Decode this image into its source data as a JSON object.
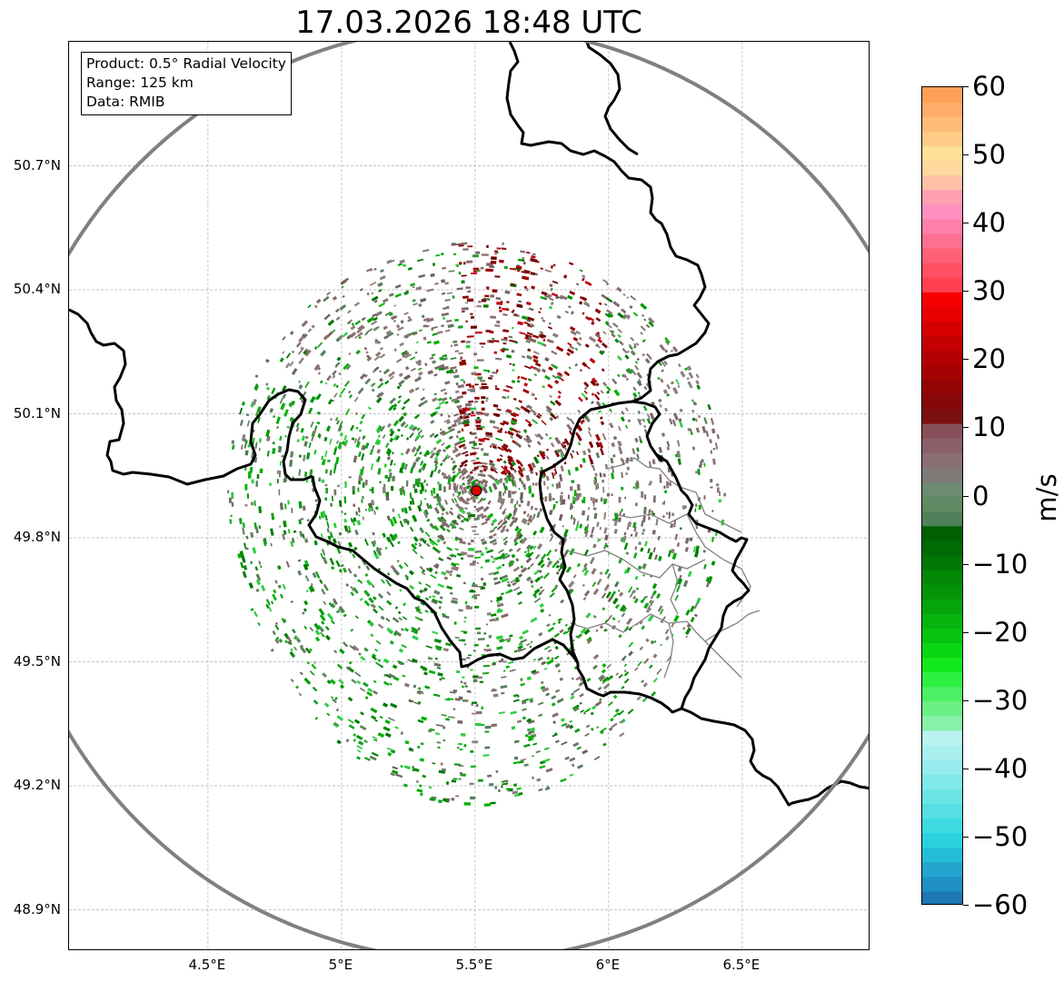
{
  "title": "17.03.2026 18:48 UTC",
  "info": {
    "product": "Product: 0.5° Radial Velocity",
    "range": "Range: 125 km",
    "data": "Data: RMIB"
  },
  "map": {
    "lat_ticks": [
      {
        "value": 50.7,
        "label": "50.7°N"
      },
      {
        "value": 50.4,
        "label": "50.4°N"
      },
      {
        "value": 50.1,
        "label": "50.1°N"
      },
      {
        "value": 49.8,
        "label": "49.8°N"
      },
      {
        "value": 49.5,
        "label": "49.5°N"
      },
      {
        "value": 49.2,
        "label": "49.2°N"
      },
      {
        "value": 48.9,
        "label": "48.9°N"
      }
    ],
    "lon_ticks": [
      {
        "value": 4.5,
        "label": "4.5°E"
      },
      {
        "value": 5.0,
        "label": "5°E"
      },
      {
        "value": 5.5,
        "label": "5.5°E"
      },
      {
        "value": 6.0,
        "label": "6°E"
      },
      {
        "value": 6.5,
        "label": "6.5°E"
      }
    ],
    "lon_range": [
      3.98,
      6.98
    ],
    "lat_range": [
      48.8,
      51.0
    ],
    "radar_site": {
      "lon": 5.505,
      "lat": 49.914
    },
    "range_km": 125,
    "gridlines": true
  },
  "colorbar": {
    "unit": "m/s",
    "vmin": -60,
    "vmax": 60,
    "ticks": [
      {
        "value": 60,
        "label": "60"
      },
      {
        "value": 50,
        "label": "50"
      },
      {
        "value": 40,
        "label": "40"
      },
      {
        "value": 30,
        "label": "30"
      },
      {
        "value": 20,
        "label": "20"
      },
      {
        "value": 10,
        "label": "10"
      },
      {
        "value": 0,
        "label": "0"
      },
      {
        "value": -10,
        "label": "−10"
      },
      {
        "value": -20,
        "label": "−20"
      },
      {
        "value": -30,
        "label": "−30"
      },
      {
        "value": -40,
        "label": "−40"
      },
      {
        "value": -50,
        "label": "−50"
      },
      {
        "value": -60,
        "label": "−60"
      }
    ],
    "colors_bottom_to_top": [
      "#1f77b4",
      "#1f8fc4",
      "#22a6cf",
      "#25bcd8",
      "#2ad2de",
      "#3fd9e0",
      "#55dfe3",
      "#6be4e6",
      "#81e8e9",
      "#96ecec",
      "#aaf0ee",
      "#baf2f2",
      "#88f0a8",
      "#6cf086",
      "#4df064",
      "#2ef042",
      "#12e81e",
      "#0ad614",
      "#06c410",
      "#05b40c",
      "#04a40a",
      "#039408",
      "#028606",
      "#017805",
      "#006a04",
      "#006000",
      "#50805a",
      "#608a64",
      "#6e8a70",
      "#807a78",
      "#887072",
      "#8a6068",
      "#88505a",
      "#7a1010",
      "#860808",
      "#940404",
      "#a40202",
      "#b40000",
      "#c40000",
      "#d60000",
      "#e80000",
      "#f80000",
      "#ff4050",
      "#ff5064",
      "#ff6078",
      "#ff7090",
      "#ff80a8",
      "#ff90c0",
      "#ffa0b0",
      "#ffc0a8",
      "#ffd8a0",
      "#ffe098",
      "#ffcc88",
      "#ffbc78",
      "#ffac68",
      "#ffa058"
    ]
  },
  "colors": {
    "border": "#000000",
    "range_ring": "#808080",
    "province_lines": "#808080",
    "grid": "#b0b0b0",
    "radar_marker": "#e00000"
  }
}
